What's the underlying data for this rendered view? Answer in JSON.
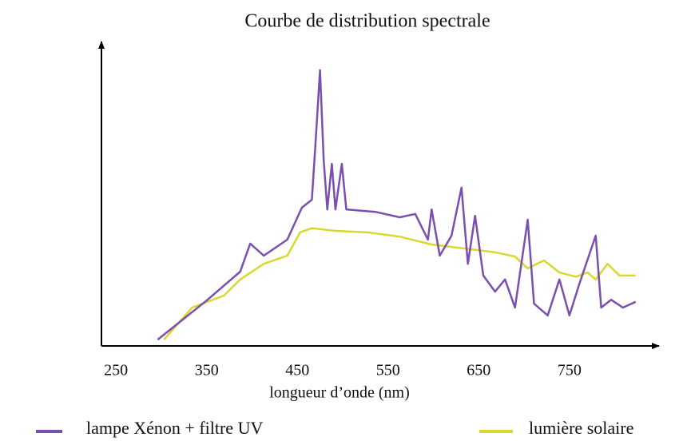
{
  "chart_data": {
    "type": "line",
    "title": "Courbe de distribution spectrale",
    "x_label": "longueur d’onde (nm)",
    "xlim": [
      234,
      840
    ],
    "xticks": [
      250,
      350,
      450,
      550,
      650,
      750
    ],
    "ylim": [
      0,
      100
    ],
    "grid": false,
    "series": [
      {
        "name": "lampe Xénon + filtre UV",
        "color": "#7a4fb0",
        "x": [
          296,
          351,
          387,
          398,
          413,
          439,
          455,
          466,
          470,
          475,
          479,
          483,
          488,
          492,
          499,
          504,
          536,
          563,
          580,
          594,
          598,
          607,
          620,
          631,
          638,
          646,
          655,
          668,
          679,
          690,
          704,
          711,
          726,
          739,
          750,
          761,
          779,
          785,
          796,
          809,
          823
        ],
        "values": [
          2.1,
          15.3,
          24.6,
          33.9,
          29.9,
          35.2,
          45.8,
          48.4,
          66.9,
          91.3,
          61.6,
          45.2,
          60.3,
          45.2,
          60.3,
          45.2,
          44.4,
          42.6,
          43.7,
          35.2,
          45.2,
          29.9,
          36.5,
          52.4,
          27.2,
          43.1,
          23.3,
          18,
          22,
          12.7,
          41.8,
          14,
          10.1,
          22,
          10.1,
          20.6,
          36.5,
          12.7,
          15.3,
          12.7,
          14.6
        ]
      },
      {
        "name": "lumière solaire",
        "color": "#d8d830",
        "x": [
          303,
          334,
          369,
          387,
          413,
          439,
          453,
          466,
          492,
          528,
          563,
          580,
          598,
          633,
          668,
          690,
          704,
          722,
          739,
          757,
          770,
          779,
          792,
          805,
          823
        ],
        "values": [
          2.1,
          12.7,
          16.7,
          22,
          27.2,
          29.9,
          37.6,
          39,
          38.1,
          37.6,
          36.2,
          34.9,
          33.6,
          32.3,
          31,
          29.6,
          25.7,
          28.3,
          24.3,
          22.9,
          24.3,
          22,
          27.2,
          23.3,
          23.3
        ]
      }
    ]
  }
}
